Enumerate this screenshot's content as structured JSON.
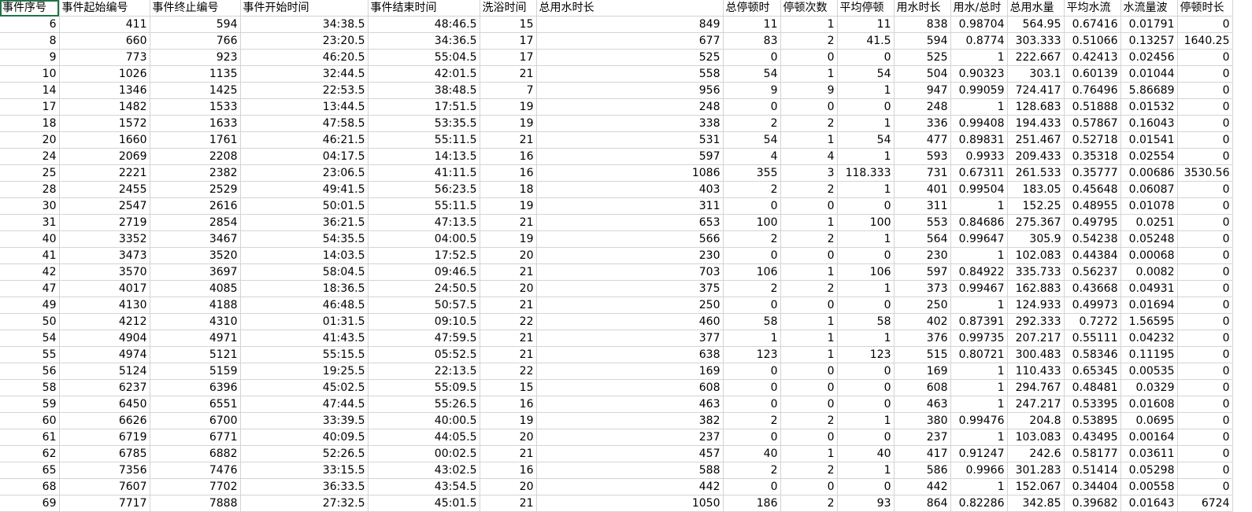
{
  "sheet": {
    "headers": [
      "事件序号",
      "事件起始编号",
      "事件终止编号",
      "事件开始时间",
      "事件结束时间",
      "洗浴时间",
      "总用水时长",
      "总停顿时",
      "停顿次数",
      "平均停顿",
      "用水时长",
      "用水/总时",
      "总用水量",
      "平均水流",
      "水流量波",
      "停顿时长"
    ],
    "rows": [
      [
        "6",
        "411",
        "594",
        "34:38.5",
        "48:46.5",
        "15",
        "849",
        "11",
        "1",
        "11",
        "838",
        "0.98704",
        "564.95",
        "0.67416",
        "0.01791",
        "0"
      ],
      [
        "8",
        "660",
        "766",
        "23:20.5",
        "34:36.5",
        "17",
        "677",
        "83",
        "2",
        "41.5",
        "594",
        "0.8774",
        "303.333",
        "0.51066",
        "0.13257",
        "1640.25"
      ],
      [
        "9",
        "773",
        "923",
        "46:20.5",
        "55:04.5",
        "17",
        "525",
        "0",
        "0",
        "0",
        "525",
        "1",
        "222.667",
        "0.42413",
        "0.02456",
        "0"
      ],
      [
        "10",
        "1026",
        "1135",
        "32:44.5",
        "42:01.5",
        "21",
        "558",
        "54",
        "1",
        "54",
        "504",
        "0.90323",
        "303.1",
        "0.60139",
        "0.01044",
        "0"
      ],
      [
        "14",
        "1346",
        "1425",
        "22:53.5",
        "38:48.5",
        "7",
        "956",
        "9",
        "9",
        "1",
        "947",
        "0.99059",
        "724.417",
        "0.76496",
        "5.86689",
        "0"
      ],
      [
        "17",
        "1482",
        "1533",
        "13:44.5",
        "17:51.5",
        "19",
        "248",
        "0",
        "0",
        "0",
        "248",
        "1",
        "128.683",
        "0.51888",
        "0.01532",
        "0"
      ],
      [
        "18",
        "1572",
        "1633",
        "47:58.5",
        "53:35.5",
        "19",
        "338",
        "2",
        "2",
        "1",
        "336",
        "0.99408",
        "194.433",
        "0.57867",
        "0.16043",
        "0"
      ],
      [
        "20",
        "1660",
        "1761",
        "46:21.5",
        "55:11.5",
        "21",
        "531",
        "54",
        "1",
        "54",
        "477",
        "0.89831",
        "251.467",
        "0.52718",
        "0.01541",
        "0"
      ],
      [
        "24",
        "2069",
        "2208",
        "04:17.5",
        "14:13.5",
        "16",
        "597",
        "4",
        "4",
        "1",
        "593",
        "0.9933",
        "209.433",
        "0.35318",
        "0.02554",
        "0"
      ],
      [
        "25",
        "2221",
        "2382",
        "23:06.5",
        "41:11.5",
        "16",
        "1086",
        "355",
        "3",
        "118.333",
        "731",
        "0.67311",
        "261.533",
        "0.35777",
        "0.00686",
        "3530.56"
      ],
      [
        "28",
        "2455",
        "2529",
        "49:41.5",
        "56:23.5",
        "18",
        "403",
        "2",
        "2",
        "1",
        "401",
        "0.99504",
        "183.05",
        "0.45648",
        "0.06087",
        "0"
      ],
      [
        "30",
        "2547",
        "2616",
        "50:01.5",
        "55:11.5",
        "19",
        "311",
        "0",
        "0",
        "0",
        "311",
        "1",
        "152.25",
        "0.48955",
        "0.01078",
        "0"
      ],
      [
        "31",
        "2719",
        "2854",
        "36:21.5",
        "47:13.5",
        "21",
        "653",
        "100",
        "1",
        "100",
        "553",
        "0.84686",
        "275.367",
        "0.49795",
        "0.0251",
        "0"
      ],
      [
        "40",
        "3352",
        "3467",
        "54:35.5",
        "04:00.5",
        "19",
        "566",
        "2",
        "2",
        "1",
        "564",
        "0.99647",
        "305.9",
        "0.54238",
        "0.05248",
        "0"
      ],
      [
        "41",
        "3473",
        "3520",
        "14:03.5",
        "17:52.5",
        "20",
        "230",
        "0",
        "0",
        "0",
        "230",
        "1",
        "102.083",
        "0.44384",
        "0.00068",
        "0"
      ],
      [
        "42",
        "3570",
        "3697",
        "58:04.5",
        "09:46.5",
        "21",
        "703",
        "106",
        "1",
        "106",
        "597",
        "0.84922",
        "335.733",
        "0.56237",
        "0.0082",
        "0"
      ],
      [
        "47",
        "4017",
        "4085",
        "18:36.5",
        "24:50.5",
        "20",
        "375",
        "2",
        "2",
        "1",
        "373",
        "0.99467",
        "162.883",
        "0.43668",
        "0.04931",
        "0"
      ],
      [
        "49",
        "4130",
        "4188",
        "46:48.5",
        "50:57.5",
        "21",
        "250",
        "0",
        "0",
        "0",
        "250",
        "1",
        "124.933",
        "0.49973",
        "0.01694",
        "0"
      ],
      [
        "50",
        "4212",
        "4310",
        "01:31.5",
        "09:10.5",
        "22",
        "460",
        "58",
        "1",
        "58",
        "402",
        "0.87391",
        "292.333",
        "0.7272",
        "1.56595",
        "0"
      ],
      [
        "54",
        "4904",
        "4971",
        "41:43.5",
        "47:59.5",
        "21",
        "377",
        "1",
        "1",
        "1",
        "376",
        "0.99735",
        "207.217",
        "0.55111",
        "0.04232",
        "0"
      ],
      [
        "55",
        "4974",
        "5121",
        "55:15.5",
        "05:52.5",
        "21",
        "638",
        "123",
        "1",
        "123",
        "515",
        "0.80721",
        "300.483",
        "0.58346",
        "0.11195",
        "0"
      ],
      [
        "56",
        "5124",
        "5159",
        "19:25.5",
        "22:13.5",
        "22",
        "169",
        "0",
        "0",
        "0",
        "169",
        "1",
        "110.433",
        "0.65345",
        "0.00535",
        "0"
      ],
      [
        "58",
        "6237",
        "6396",
        "45:02.5",
        "55:09.5",
        "15",
        "608",
        "0",
        "0",
        "0",
        "608",
        "1",
        "294.767",
        "0.48481",
        "0.0329",
        "0"
      ],
      [
        "59",
        "6450",
        "6551",
        "47:44.5",
        "55:26.5",
        "16",
        "463",
        "0",
        "0",
        "0",
        "463",
        "1",
        "247.217",
        "0.53395",
        "0.01608",
        "0"
      ],
      [
        "60",
        "6626",
        "6700",
        "33:39.5",
        "40:00.5",
        "19",
        "382",
        "2",
        "2",
        "1",
        "380",
        "0.99476",
        "204.8",
        "0.53895",
        "0.0695",
        "0"
      ],
      [
        "61",
        "6719",
        "6771",
        "40:09.5",
        "44:05.5",
        "20",
        "237",
        "0",
        "0",
        "0",
        "237",
        "1",
        "103.083",
        "0.43495",
        "0.00164",
        "0"
      ],
      [
        "62",
        "6785",
        "6882",
        "52:26.5",
        "00:02.5",
        "21",
        "457",
        "40",
        "1",
        "40",
        "417",
        "0.91247",
        "242.6",
        "0.58177",
        "0.03611",
        "0"
      ],
      [
        "65",
        "7356",
        "7476",
        "33:15.5",
        "43:02.5",
        "16",
        "588",
        "2",
        "2",
        "1",
        "586",
        "0.9966",
        "301.283",
        "0.51414",
        "0.05298",
        "0"
      ],
      [
        "68",
        "7607",
        "7702",
        "36:33.5",
        "43:54.5",
        "20",
        "442",
        "0",
        "0",
        "0",
        "442",
        "1",
        "152.067",
        "0.34404",
        "0.00558",
        "0"
      ],
      [
        "69",
        "7717",
        "7888",
        "27:32.5",
        "45:01.5",
        "21",
        "1050",
        "186",
        "2",
        "93",
        "864",
        "0.82286",
        "342.85",
        "0.39682",
        "0.01643",
        "6724"
      ]
    ]
  }
}
